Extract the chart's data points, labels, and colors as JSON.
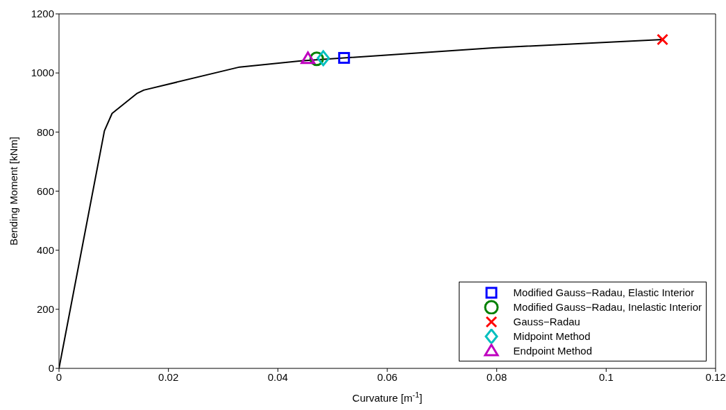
{
  "chart_data": {
    "type": "line",
    "xlabel": "Curvature [m$^{-1}$]",
    "ylabel": "Bending Moment [kNm]",
    "xlim": [
      0,
      0.12
    ],
    "xticks": [
      0,
      0.02,
      0.04,
      0.06,
      0.08,
      0.1,
      0.12
    ],
    "ylim": [
      0,
      1200
    ],
    "yticks": [
      0,
      200,
      400,
      600,
      800,
      1000,
      1200
    ],
    "grid": false,
    "legend": "bottom right",
    "series": [
      {
        "color": "#000000",
        "marker": "none",
        "line_style": "solid",
        "x": [
          0,
          0.0083,
          0.0097,
          0.0142,
          0.0155,
          0.033,
          0.0442,
          0.0793,
          0.1103
        ],
        "values": [
          0,
          804,
          863,
          930,
          942,
          1020,
          1041,
          1085,
          1113
        ]
      },
      {
        "type": "scatter",
        "name": "Modified Gauss−Radau, Elastic Interior",
        "color": "#0000ff",
        "marker": "square",
        "x": [
          0.0521
        ],
        "values": [
          1051
        ]
      },
      {
        "type": "scatter",
        "name": "Modified Gauss−Radau, Inelastic Interior",
        "color": "#008000",
        "marker": "circle",
        "x": [
          0.0471
        ],
        "values": [
          1048
        ]
      },
      {
        "type": "scatter",
        "name": "Gauss−Radau",
        "color": "#ff0000",
        "marker": "cross",
        "x": [
          0.1103
        ],
        "values": [
          1113
        ]
      },
      {
        "type": "scatter",
        "name": "Midpoint Method",
        "color": "#00bfbf",
        "marker": "diamond",
        "x": [
          0.0483
        ],
        "values": [
          1050
        ]
      },
      {
        "type": "scatter",
        "name": "Endpoint Method",
        "color": "#bf00bf",
        "marker": "triangle",
        "x": [
          0.0455
        ],
        "values": [
          1048
        ]
      }
    ]
  }
}
